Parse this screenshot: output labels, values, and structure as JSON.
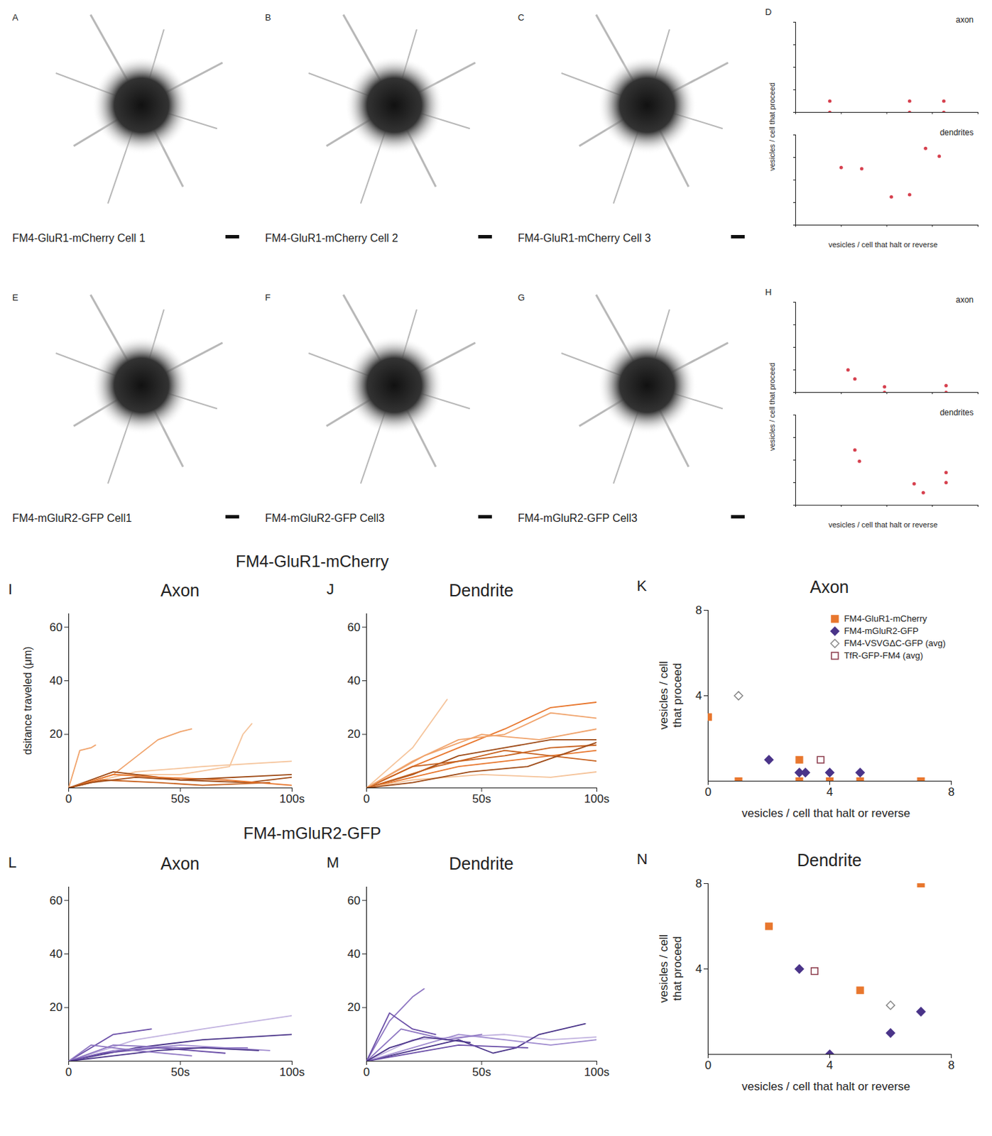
{
  "headings": [
    "FM4-GluR1-mCherry",
    "FM4-mGluR2-GFP"
  ],
  "chart_data": [
    {
      "panel": "A",
      "type": "image",
      "title": "FM4-GluR1-mCherry Cell 1"
    },
    {
      "panel": "B",
      "type": "image",
      "title": "FM4-GluR1-mCherry Cell 2"
    },
    {
      "panel": "C",
      "type": "image",
      "title": "FM4-GluR1-mCherry Cell 3"
    },
    {
      "panel": "D",
      "type": "scatter",
      "xlabel": "vesicles / cell that halt or reverse",
      "ylabel": "vesicles / cell that proceed",
      "color": "#d6404e",
      "tick_labels": false,
      "charts": [
        {
          "title": "axon",
          "xlim": [
            0,
            8
          ],
          "xticks": [
            0,
            2,
            4,
            6,
            8
          ],
          "ylim": [
            0,
            8
          ],
          "yticks": [
            0,
            2,
            4,
            6,
            8
          ],
          "x": [
            1.5,
            1.5,
            5,
            5,
            6.5,
            6.5
          ],
          "values": [
            1,
            0,
            1,
            0,
            1,
            0
          ]
        },
        {
          "title": "dendrites",
          "xlim": [
            0,
            8
          ],
          "xticks": [
            0,
            2,
            4,
            6,
            8
          ],
          "ylim": [
            0,
            8
          ],
          "yticks": [
            0,
            2,
            4,
            6,
            8
          ],
          "x": [
            2,
            2.9,
            4.2,
            5,
            5.7,
            6.3
          ],
          "values": [
            5.1,
            5,
            2.5,
            2.7,
            6.8,
            6.1
          ]
        }
      ]
    },
    {
      "panel": "E",
      "type": "image",
      "title": "FM4-mGluR2-GFP Cell1"
    },
    {
      "panel": "F",
      "type": "image",
      "title": "FM4-mGluR2-GFP Cell3"
    },
    {
      "panel": "G",
      "type": "image",
      "title": "FM4-mGluR2-GFP Cell3"
    },
    {
      "panel": "H",
      "type": "scatter",
      "xlabel": "vesicles / cell that halt or reverse",
      "ylabel": "vesicles / cell that proceed",
      "color": "#d6404e",
      "tick_labels": false,
      "charts": [
        {
          "title": "axon",
          "xlim": [
            0,
            8
          ],
          "xticks": [
            0,
            2,
            4,
            6,
            8
          ],
          "ylim": [
            0,
            8
          ],
          "yticks": [
            0,
            2,
            4,
            6,
            8
          ],
          "x": [
            2.3,
            2.6,
            3.9,
            3.9,
            6.6,
            6.6
          ],
          "values": [
            2,
            1.2,
            0.5,
            0,
            0.6,
            0
          ]
        },
        {
          "title": "dendrites",
          "xlim": [
            0,
            8
          ],
          "xticks": [
            0,
            2,
            4,
            6,
            8
          ],
          "ylim": [
            0,
            8
          ],
          "yticks": [
            0,
            2,
            4,
            6,
            8
          ],
          "x": [
            2.6,
            2.8,
            5.2,
            5.6,
            6.6,
            6.6
          ],
          "values": [
            4.9,
            3.9,
            1.9,
            1.1,
            2.9,
            2
          ]
        }
      ]
    },
    {
      "panel": "I",
      "type": "line",
      "title": "Axon",
      "ylabel": "dsitance traveled (μm)",
      "xlim": [
        0,
        100
      ],
      "xticks": [
        0,
        {
          "value": 50,
          "label": "50s"
        },
        {
          "value": 100,
          "label": "100s"
        }
      ],
      "ylim": [
        0,
        65
      ],
      "yticks": [
        20,
        40,
        60
      ],
      "series": [
        {
          "color": "#f0a36b",
          "x": [
            0,
            5,
            10,
            12
          ],
          "values": [
            0,
            14,
            15,
            16
          ]
        },
        {
          "color": "#f0a36b",
          "x": [
            0,
            20,
            40,
            50,
            55
          ],
          "values": [
            0,
            5,
            18,
            21,
            22
          ]
        },
        {
          "color": "#f5c49b",
          "x": [
            0,
            20,
            50,
            72,
            78,
            82
          ],
          "values": [
            0,
            5,
            5,
            8,
            20,
            24
          ]
        },
        {
          "color": "#f5c49b",
          "x": [
            0,
            30,
            60,
            100
          ],
          "values": [
            0,
            6,
            8,
            10
          ]
        },
        {
          "color": "#9e4a16",
          "x": [
            0,
            20,
            50,
            80,
            100
          ],
          "values": [
            0,
            6,
            3,
            2,
            4
          ]
        },
        {
          "color": "#e8772e",
          "x": [
            0,
            20,
            40,
            70,
            100
          ],
          "values": [
            0,
            5,
            4,
            3,
            1
          ]
        },
        {
          "color": "#c8621f",
          "x": [
            0,
            15,
            40,
            60,
            90
          ],
          "values": [
            0,
            3,
            2,
            1,
            2
          ]
        },
        {
          "color": "#9e4a16",
          "x": [
            0,
            10,
            30,
            50,
            100
          ],
          "values": [
            0,
            2,
            4,
            3,
            5
          ]
        }
      ]
    },
    {
      "panel": "J",
      "type": "line",
      "title": "Dendrite",
      "xlim": [
        0,
        100
      ],
      "xticks": [
        0,
        {
          "value": 50,
          "label": "50s"
        },
        {
          "value": 100,
          "label": "100s"
        }
      ],
      "ylim": [
        0,
        65
      ],
      "yticks": [
        20,
        40,
        60
      ],
      "series": [
        {
          "color": "#f5c49b",
          "x": [
            0,
            20,
            35
          ],
          "values": [
            0,
            15,
            33
          ]
        },
        {
          "color": "#e8772e",
          "x": [
            0,
            20,
            40,
            60,
            80,
            100
          ],
          "values": [
            0,
            8,
            15,
            22,
            30,
            32
          ]
        },
        {
          "color": "#f0a36b",
          "x": [
            0,
            20,
            40,
            60,
            80,
            100
          ],
          "values": [
            0,
            10,
            18,
            20,
            28,
            26
          ]
        },
        {
          "color": "#9e4a16",
          "x": [
            0,
            20,
            40,
            60,
            80,
            100
          ],
          "values": [
            0,
            5,
            12,
            15,
            18,
            18
          ]
        },
        {
          "color": "#c8621f",
          "x": [
            0,
            20,
            40,
            60,
            80,
            100
          ],
          "values": [
            0,
            8,
            10,
            12,
            15,
            16
          ]
        },
        {
          "color": "#f0a36b",
          "x": [
            0,
            25,
            50,
            75,
            100
          ],
          "values": [
            0,
            12,
            20,
            18,
            22
          ]
        },
        {
          "color": "#e8772e",
          "x": [
            0,
            20,
            40,
            60,
            80,
            100
          ],
          "values": [
            0,
            4,
            8,
            10,
            12,
            14
          ]
        },
        {
          "color": "#f5c49b",
          "x": [
            0,
            20,
            50,
            80,
            100
          ],
          "values": [
            0,
            3,
            5,
            4,
            6
          ]
        },
        {
          "color": "#c8621f",
          "x": [
            0,
            30,
            60,
            100
          ],
          "values": [
            0,
            8,
            14,
            10
          ]
        },
        {
          "color": "#9e4a16",
          "x": [
            0,
            20,
            45,
            70,
            100
          ],
          "values": [
            0,
            2,
            6,
            8,
            17
          ]
        }
      ]
    },
    {
      "panel": "K",
      "type": "scatter",
      "title": "Axon",
      "xlabel": "vesicles / cell that halt or reverse",
      "ylabel": "vesicles / cell that proceed",
      "xlim": [
        0,
        8
      ],
      "xticks": [
        0,
        4,
        8
      ],
      "ylim": [
        0,
        8
      ],
      "yticks": [
        4,
        8
      ],
      "legend": "upper right",
      "series": [
        {
          "name": "FM4-GluR1-mCherry",
          "color": "#e8772e",
          "marker": "square",
          "x": [
            0,
            1,
            3,
            3,
            4,
            5,
            7
          ],
          "values": [
            3,
            0,
            1,
            0,
            0,
            0,
            0
          ]
        },
        {
          "name": "FM4-mGluR2-GFP",
          "color": "#4a3489",
          "marker": "diamond",
          "x": [
            2,
            3,
            3.2,
            4,
            5
          ],
          "values": [
            1,
            0.4,
            0.4,
            0.4,
            0.4
          ]
        },
        {
          "name": "FM4-VSVGΔC-GFP (avg)",
          "color": "#888888",
          "marker": "diamond-open",
          "x": [
            1
          ],
          "values": [
            4
          ]
        },
        {
          "name": "TfR-GFP-FM4 (avg)",
          "color": "#8b3a4a",
          "marker": "square-open",
          "x": [
            3.7
          ],
          "values": [
            1
          ]
        }
      ]
    },
    {
      "panel": "L",
      "type": "line",
      "title": "Axon",
      "xlim": [
        0,
        100
      ],
      "xticks": [
        0,
        {
          "value": 50,
          "label": "50s"
        },
        {
          "value": 100,
          "label": "100s"
        }
      ],
      "ylim": [
        0,
        65
      ],
      "yticks": [
        20,
        40,
        60
      ],
      "series": [
        {
          "color": "#6b4fa8",
          "x": [
            0,
            20,
            37
          ],
          "values": [
            0,
            10,
            12
          ]
        },
        {
          "color": "#c2b3e0",
          "x": [
            0,
            30,
            60,
            100
          ],
          "values": [
            0,
            8,
            12,
            17
          ]
        },
        {
          "color": "#4a3489",
          "x": [
            0,
            30,
            60,
            100
          ],
          "values": [
            0,
            5,
            8,
            10
          ]
        },
        {
          "color": "#8e76c2",
          "x": [
            0,
            20,
            50,
            80
          ],
          "values": [
            0,
            6,
            5,
            5
          ]
        },
        {
          "color": "#a08ccf",
          "x": [
            0,
            20,
            50,
            90
          ],
          "values": [
            0,
            4,
            6,
            4
          ]
        },
        {
          "color": "#6b4fa8",
          "x": [
            0,
            15,
            40,
            70
          ],
          "values": [
            0,
            3,
            5,
            3
          ]
        },
        {
          "color": "#4a3489",
          "x": [
            0,
            20,
            40,
            60,
            85
          ],
          "values": [
            0,
            2,
            4,
            5,
            4
          ]
        },
        {
          "color": "#8e76c2",
          "x": [
            0,
            10,
            30,
            55
          ],
          "values": [
            0,
            6,
            4,
            2
          ]
        }
      ]
    },
    {
      "panel": "M",
      "type": "line",
      "title": "Dendrite",
      "xlim": [
        0,
        100
      ],
      "xticks": [
        0,
        {
          "value": 50,
          "label": "50s"
        },
        {
          "value": 100,
          "label": "100s"
        }
      ],
      "ylim": [
        0,
        65
      ],
      "yticks": [
        20,
        40,
        60
      ],
      "series": [
        {
          "color": "#8e76c2",
          "x": [
            0,
            10,
            20,
            25
          ],
          "values": [
            0,
            15,
            24,
            27
          ]
        },
        {
          "color": "#c2b3e0",
          "x": [
            0,
            20,
            40,
            60,
            80,
            100
          ],
          "values": [
            0,
            8,
            9,
            10,
            8,
            9
          ]
        },
        {
          "color": "#6b4fa8",
          "x": [
            0,
            10,
            20,
            30
          ],
          "values": [
            0,
            18,
            12,
            10
          ]
        },
        {
          "color": "#4a3489",
          "x": [
            0,
            20,
            40,
            55,
            65,
            75,
            95
          ],
          "values": [
            0,
            4,
            8,
            3,
            5,
            10,
            14
          ]
        },
        {
          "color": "#a08ccf",
          "x": [
            0,
            20,
            40,
            60,
            80,
            100
          ],
          "values": [
            0,
            5,
            10,
            8,
            6,
            8
          ]
        },
        {
          "color": "#8e76c2",
          "x": [
            0,
            15,
            35,
            50
          ],
          "values": [
            0,
            12,
            8,
            10
          ]
        },
        {
          "color": "#6b4fa8",
          "x": [
            0,
            20,
            40,
            70
          ],
          "values": [
            0,
            3,
            6,
            5
          ]
        },
        {
          "color": "#4a3489",
          "x": [
            0,
            10,
            25,
            45
          ],
          "values": [
            0,
            5,
            9,
            7
          ]
        }
      ]
    },
    {
      "panel": "N",
      "type": "scatter",
      "title": "Dendrite",
      "xlabel": "vesicles / cell that halt or reverse",
      "ylabel": "vesicles / cell that proceed",
      "xlim": [
        0,
        8
      ],
      "xticks": [
        0,
        4,
        8
      ],
      "ylim": [
        0,
        8
      ],
      "yticks": [
        4,
        8
      ],
      "series": [
        {
          "color": "#e8772e",
          "marker": "square",
          "x": [
            2,
            7,
            5
          ],
          "values": [
            6,
            8,
            3
          ]
        },
        {
          "color": "#4a3489",
          "marker": "diamond",
          "x": [
            3,
            4,
            6,
            7
          ],
          "values": [
            4,
            0,
            1,
            2
          ]
        },
        {
          "color": "#888888",
          "marker": "diamond-open",
          "x": [
            6
          ],
          "values": [
            2.3
          ]
        },
        {
          "color": "#8b3a4a",
          "marker": "square-open",
          "x": [
            3.5
          ],
          "values": [
            3.9
          ]
        }
      ]
    }
  ]
}
